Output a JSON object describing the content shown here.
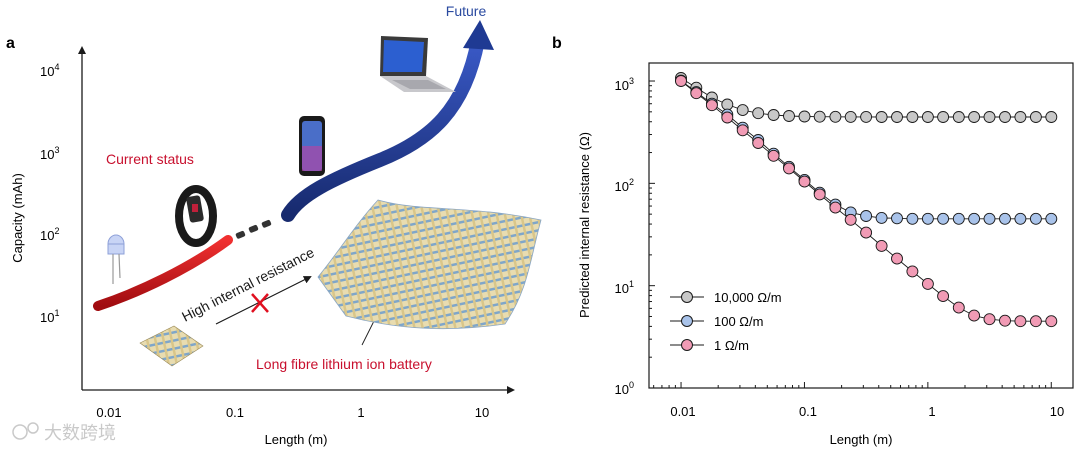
{
  "watermark": "大数跨境",
  "chart_data": [
    {
      "panel": "a",
      "type": "line",
      "xlabel": "Length (m)",
      "ylabel": "Capacity (mAh)",
      "x_scale": "log",
      "y_scale": "log",
      "x_ticks": [
        "0.01",
        "0.1",
        "1",
        "10"
      ],
      "y_ticks": [
        {
          "base": "10",
          "exp": "1"
        },
        {
          "base": "10",
          "exp": "2"
        },
        {
          "base": "10",
          "exp": "3"
        },
        {
          "base": "10",
          "exp": "4"
        }
      ],
      "annotations": {
        "current_status": "Current status",
        "future": "Future",
        "high_resistance": "High internal resistance",
        "long_fibre": "Long fibre lithium ion battery"
      },
      "colors": {
        "current": "#d01218",
        "future": "#1f3a93",
        "annotation_red": "#c8102e",
        "future_text": "#2a4aa0"
      },
      "icons": [
        "led-icon",
        "fitness-band-icon",
        "smartphone-icon",
        "laptop-icon",
        "small-fabric-icon",
        "large-fabric-icon"
      ]
    },
    {
      "panel": "b",
      "type": "scatter",
      "xlabel": "Length (m)",
      "ylabel": "Predicted internal resistance (Ω)",
      "x_scale": "log",
      "y_scale": "log",
      "xlim": [
        0.0055,
        15
      ],
      "ylim": [
        1,
        1500
      ],
      "x_ticks": [
        "0.01",
        "0.1",
        "1",
        "10"
      ],
      "y_ticks": [
        {
          "base": "10",
          "exp": "0"
        },
        {
          "base": "10",
          "exp": "1"
        },
        {
          "base": "10",
          "exp": "2"
        },
        {
          "base": "10",
          "exp": "3"
        }
      ],
      "legend_position": "lower-left",
      "x": [
        0.01,
        0.0133,
        0.0178,
        0.0237,
        0.0316,
        0.0422,
        0.0562,
        0.075,
        0.1,
        0.133,
        0.178,
        0.237,
        0.316,
        0.422,
        0.562,
        0.75,
        1,
        1.33,
        1.78,
        2.37,
        3.16,
        4.22,
        5.62,
        7.5,
        10
      ],
      "series": [
        {
          "name": "10,000 Ω/m",
          "color": "#c8c8c8",
          "values": [
            1070,
            860,
            690,
            590,
            520,
            485,
            465,
            455,
            450,
            448,
            447,
            446,
            446,
            445,
            445,
            445,
            445,
            445,
            445,
            445,
            445,
            445,
            445,
            445,
            445
          ]
        },
        {
          "name": "100 Ω/m",
          "color": "#a9c3ea",
          "values": [
            1010,
            780,
            600,
            470,
            350,
            265,
            195,
            145,
            108,
            81,
            62,
            52,
            48,
            46,
            45.5,
            45,
            45,
            45,
            45,
            45,
            45,
            45,
            45,
            45,
            45
          ]
        },
        {
          "name": "1 Ω/m",
          "color": "#f19bb5",
          "values": [
            1000,
            760,
            580,
            440,
            330,
            248,
            186,
            140,
            104,
            78,
            58,
            44,
            33,
            24.5,
            18.4,
            13.8,
            10.4,
            7.9,
            6.1,
            5.1,
            4.7,
            4.55,
            4.5,
            4.5,
            4.5
          ]
        }
      ]
    }
  ],
  "panel_labels": {
    "a": "a",
    "b": "b"
  }
}
